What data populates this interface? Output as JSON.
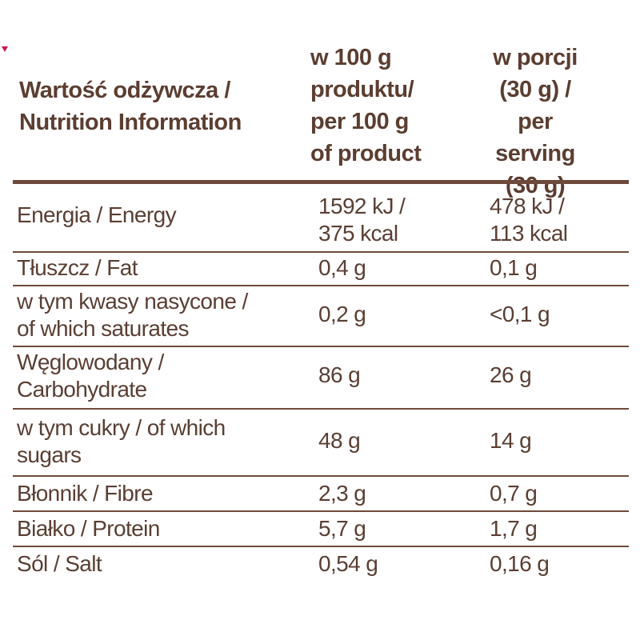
{
  "header": {
    "label_line1": "Wartość odżywcza /",
    "label_line2": "Nutrition Information",
    "per100_line1": "w 100 g",
    "per100_line2": "produktu/",
    "per100_line3": "per 100 g",
    "per100_line4": "of product",
    "serving_line1": "w porcji",
    "serving_line2": "(30 g) /",
    "serving_line3": "per serving",
    "serving_line4": "(30 g)"
  },
  "rows": [
    {
      "label_line1": "Energia / Energy",
      "label_line2": "",
      "per100_line1": "1592 kJ /",
      "per100_line2": "375 kcal",
      "serving_line1": "478 kJ /",
      "serving_line2": "113 kcal"
    },
    {
      "label_line1": "Tłuszcz / Fat",
      "label_line2": "",
      "per100_line1": "0,4 g",
      "per100_line2": "",
      "serving_line1": "0,1 g",
      "serving_line2": ""
    },
    {
      "label_line1": "w tym kwasy nasycone /",
      "label_line2": "of which saturates",
      "per100_line1": "0,2 g",
      "per100_line2": "",
      "serving_line1": "<0,1 g",
      "serving_line2": ""
    },
    {
      "label_line1": "Węglowodany /",
      "label_line2": "Carbohydrate",
      "per100_line1": "86 g",
      "per100_line2": "",
      "serving_line1": "26 g",
      "serving_line2": ""
    },
    {
      "label_line1": "w tym cukry / of which",
      "label_line2": "sugars",
      "per100_line1": "48 g",
      "per100_line2": "",
      "serving_line1": "14 g",
      "serving_line2": ""
    },
    {
      "label_line1": "Błonnik / Fibre",
      "label_line2": "",
      "per100_line1": "2,3 g",
      "per100_line2": "",
      "serving_line1": "0,7 g",
      "serving_line2": ""
    },
    {
      "label_line1": "Białko / Protein",
      "label_line2": "",
      "per100_line1": "5,7 g",
      "per100_line2": "",
      "serving_line1": "1,7 g",
      "serving_line2": ""
    },
    {
      "label_line1": "Sól / Salt",
      "label_line2": "",
      "per100_line1": "0,54 g",
      "per100_line2": "",
      "serving_line1": "0,16 g",
      "serving_line2": ""
    }
  ],
  "colors": {
    "text": "#5a3f33",
    "rule": "#6e4a3a",
    "accent": "#c2185b"
  }
}
